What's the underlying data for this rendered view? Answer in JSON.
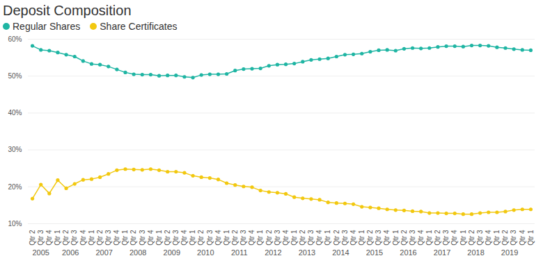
{
  "chart_data": {
    "type": "line",
    "title": "Deposit Composition",
    "legend": "top-left",
    "marker": "circle",
    "grid": true,
    "categories": [
      "Qtr 2",
      "Qtr 3",
      "Qtr 4",
      "Qtr 1",
      "Qtr 2",
      "Qtr 3",
      "Qtr 4",
      "Qtr 1",
      "Qtr 2",
      "Qtr 3",
      "Qtr 4",
      "Qtr 1",
      "Qtr 2",
      "Qtr 3",
      "Qtr 4",
      "Qtr 1",
      "Qtr 2",
      "Qtr 3",
      "Qtr 4",
      "Qtr 1",
      "Qtr 2",
      "Qtr 3",
      "Qtr 4",
      "Qtr 1",
      "Qtr 2",
      "Qtr 3",
      "Qtr 4",
      "Qtr 1",
      "Qtr 2",
      "Qtr 3",
      "Qtr 4",
      "Qtr 1",
      "Qtr 2",
      "Qtr 3",
      "Qtr 4",
      "Qtr 1",
      "Qtr 2",
      "Qtr 3",
      "Qtr 4",
      "Qtr 1",
      "Qtr 2",
      "Qtr 3",
      "Qtr 4",
      "Qtr 1",
      "Qtr 2",
      "Qtr 3",
      "Qtr 4",
      "Qtr 1",
      "Qtr 2",
      "Qtr 3",
      "Qtr 4",
      "Qtr 1",
      "Qtr 2",
      "Qtr 3",
      "Qtr 4",
      "Qtr 1",
      "Qtr 2",
      "Qtr 3",
      "Qtr 4",
      "Qtr 1"
    ],
    "years": [
      "2005",
      "2005",
      "2005",
      "2006",
      "2006",
      "2006",
      "2006",
      "2007",
      "2007",
      "2007",
      "2007",
      "2008",
      "2008",
      "2008",
      "2008",
      "2009",
      "2009",
      "2009",
      "2009",
      "2010",
      "2010",
      "2010",
      "2010",
      "2011",
      "2011",
      "2011",
      "2011",
      "2012",
      "2012",
      "2012",
      "2012",
      "2013",
      "2013",
      "2013",
      "2013",
      "2014",
      "2014",
      "2014",
      "2014",
      "2015",
      "2015",
      "2015",
      "2015",
      "2016",
      "2016",
      "2016",
      "2016",
      "2017",
      "2017",
      "2017",
      "2017",
      "2018",
      "2018",
      "2018",
      "2018",
      "2019",
      "2019",
      "2019",
      "2019",
      null
    ],
    "series": [
      {
        "name": "Regular Shares",
        "color": "#1fb5a3",
        "values": [
          58.2,
          57.1,
          56.9,
          56.4,
          55.8,
          55.3,
          54.1,
          53.3,
          53.1,
          52.6,
          51.8,
          51.0,
          50.5,
          50.4,
          50.4,
          50.1,
          50.2,
          50.2,
          49.8,
          49.6,
          50.3,
          50.5,
          50.5,
          50.6,
          51.5,
          51.9,
          52.0,
          52.1,
          52.8,
          53.1,
          53.2,
          53.4,
          53.9,
          54.4,
          54.6,
          54.8,
          55.3,
          55.8,
          55.9,
          56.1,
          56.6,
          57.0,
          57.1,
          56.9,
          57.4,
          57.6,
          57.5,
          57.6,
          57.9,
          58.1,
          58.1,
          58.0,
          58.3,
          58.3,
          58.2,
          57.8,
          57.6,
          57.3,
          57.1,
          57.0
        ]
      },
      {
        "name": "Share Certificates",
        "color": "#f2c80f",
        "values": [
          16.8,
          20.6,
          18.2,
          21.8,
          19.6,
          20.8,
          21.9,
          22.1,
          22.6,
          23.5,
          24.5,
          24.8,
          24.7,
          24.6,
          24.8,
          24.5,
          24.1,
          24.1,
          23.8,
          23.0,
          22.6,
          22.4,
          22.0,
          21.0,
          20.5,
          20.1,
          19.9,
          19.0,
          18.6,
          18.4,
          18.1,
          17.2,
          16.9,
          16.7,
          16.5,
          15.8,
          15.6,
          15.5,
          15.3,
          14.6,
          14.4,
          14.2,
          13.9,
          13.7,
          13.6,
          13.4,
          13.3,
          12.9,
          12.9,
          12.8,
          12.8,
          12.6,
          12.6,
          12.9,
          13.1,
          13.1,
          13.3,
          13.7,
          13.9,
          13.9
        ]
      }
    ],
    "ylim": [
      10,
      60
    ],
    "yticks": [
      {
        "value": 10,
        "label": "10%"
      },
      {
        "value": 20,
        "label": "20%"
      },
      {
        "value": 30,
        "label": "30%"
      },
      {
        "value": 40,
        "label": "40%"
      },
      {
        "value": 50,
        "label": "50%"
      },
      {
        "value": 60,
        "label": "60%"
      }
    ]
  }
}
